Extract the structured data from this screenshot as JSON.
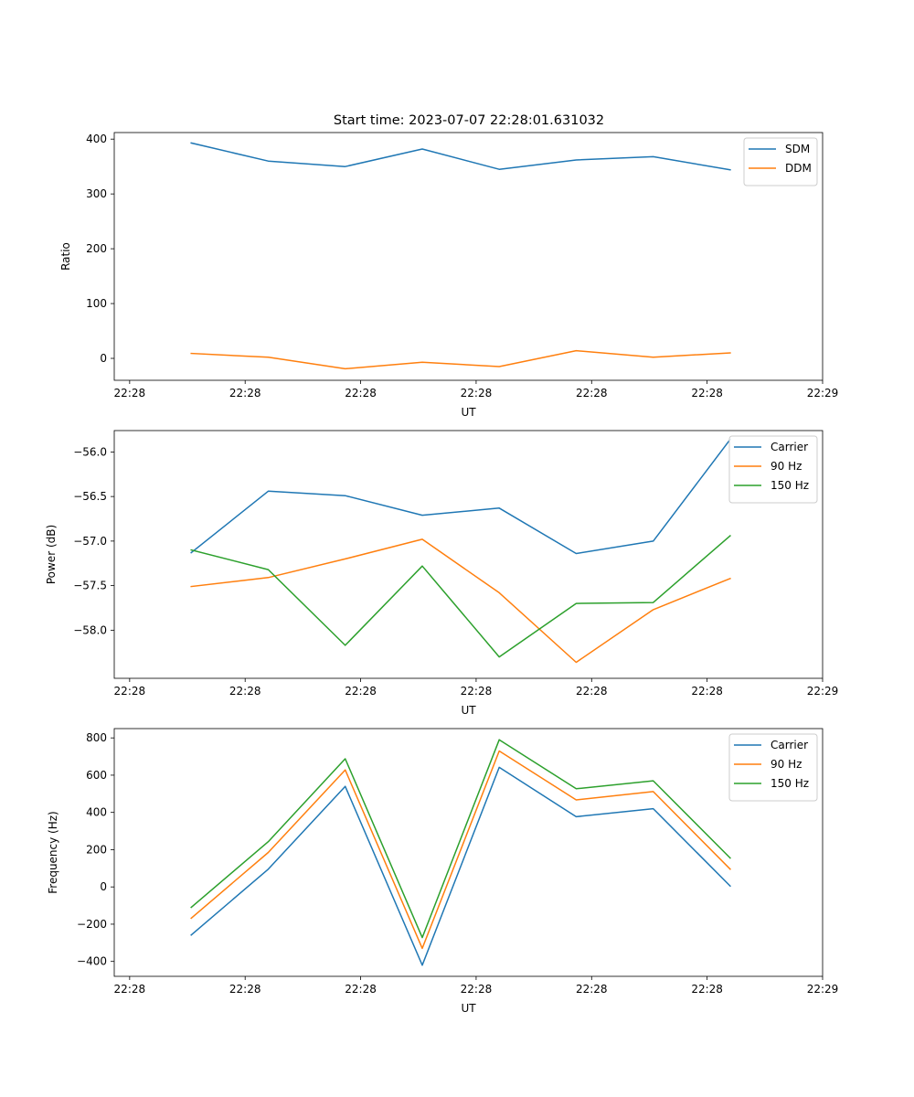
{
  "figure": {
    "title": "Start time: 2023-07-07 22:28:01.631032"
  },
  "colors": {
    "blue": "#1f77b4",
    "orange": "#ff7f0e",
    "green": "#2ca02c"
  },
  "chart_data": [
    {
      "type": "line",
      "title": "Start time: 2023-07-07 22:28:01.631032",
      "xlabel": "UT",
      "ylabel": "Ratio",
      "x": [
        1,
        2,
        3,
        4,
        5,
        6,
        7,
        8
      ],
      "xlim": [
        0,
        9.2
      ],
      "x_ticks": [
        0.2,
        1.7,
        3.2,
        4.7,
        6.2,
        7.7,
        9.2
      ],
      "x_tick_labels": [
        "22:28",
        "22:28",
        "22:28",
        "22:28",
        "22:28",
        "22:28",
        "22:29"
      ],
      "ylim": [
        -40,
        412
      ],
      "y_ticks": [
        0,
        100,
        200,
        300,
        400
      ],
      "y_tick_labels": [
        "0",
        "100",
        "200",
        "300",
        "400"
      ],
      "legend": "top-right",
      "series": [
        {
          "name": "SDM",
          "color": "#1f77b4",
          "values": [
            393,
            360,
            350,
            382,
            345,
            362,
            368,
            344
          ]
        },
        {
          "name": "DDM",
          "color": "#ff7f0e",
          "values": [
            9,
            2,
            -19,
            -7,
            -15,
            14,
            2,
            10
          ]
        }
      ]
    },
    {
      "type": "line",
      "xlabel": "UT",
      "ylabel": "Power (dB)",
      "x": [
        1,
        2,
        3,
        4,
        5,
        6,
        7,
        8
      ],
      "xlim": [
        0,
        9.2
      ],
      "x_ticks": [
        0.2,
        1.7,
        3.2,
        4.7,
        6.2,
        7.7,
        9.2
      ],
      "x_tick_labels": [
        "22:28",
        "22:28",
        "22:28",
        "22:28",
        "22:28",
        "22:28",
        "22:29"
      ],
      "ylim": [
        -58.54,
        -55.76
      ],
      "y_ticks": [
        -56.0,
        -56.5,
        -57.0,
        -57.5,
        -58.0
      ],
      "y_tick_labels": [
        "−56.0",
        "−56.5",
        "−57.0",
        "−57.5",
        "−58.0"
      ],
      "legend": "top-right",
      "series": [
        {
          "name": "Carrier",
          "color": "#1f77b4",
          "values": [
            -57.13,
            -56.44,
            -56.49,
            -56.71,
            -56.63,
            -57.14,
            -57.0,
            -55.86
          ]
        },
        {
          "name": "90 Hz",
          "color": "#ff7f0e",
          "values": [
            -57.51,
            -57.41,
            -57.2,
            -56.98,
            -57.58,
            -58.36,
            -57.77,
            -57.42
          ]
        },
        {
          "name": "150 Hz",
          "color": "#2ca02c",
          "values": [
            -57.1,
            -57.32,
            -58.17,
            -57.28,
            -58.3,
            -57.7,
            -57.69,
            -56.94
          ]
        }
      ]
    },
    {
      "type": "line",
      "xlabel": "UT",
      "ylabel": "Frequency (Hz)",
      "x": [
        1,
        2,
        3,
        4,
        5,
        6,
        7,
        8
      ],
      "xlim": [
        0,
        9.2
      ],
      "x_ticks": [
        0.2,
        1.7,
        3.2,
        4.7,
        6.2,
        7.7,
        9.2
      ],
      "x_tick_labels": [
        "22:28",
        "22:28",
        "22:28",
        "22:28",
        "22:28",
        "22:28",
        "22:29"
      ],
      "ylim": [
        -480,
        850
      ],
      "y_ticks": [
        800,
        600,
        400,
        200,
        0,
        -200,
        -400
      ],
      "y_tick_labels": [
        "800",
        "600",
        "400",
        "200",
        "0",
        "−200",
        "−400"
      ],
      "legend": "top-right",
      "series": [
        {
          "name": "Carrier",
          "color": "#1f77b4",
          "values": [
            -258,
            95,
            540,
            -420,
            642,
            377,
            420,
            5
          ]
        },
        {
          "name": "90 Hz",
          "color": "#ff7f0e",
          "values": [
            -168,
            185,
            628,
            -330,
            730,
            467,
            512,
            95
          ]
        },
        {
          "name": "150 Hz",
          "color": "#2ca02c",
          "values": [
            -110,
            243,
            688,
            -272,
            790,
            527,
            570,
            155
          ]
        }
      ]
    }
  ]
}
